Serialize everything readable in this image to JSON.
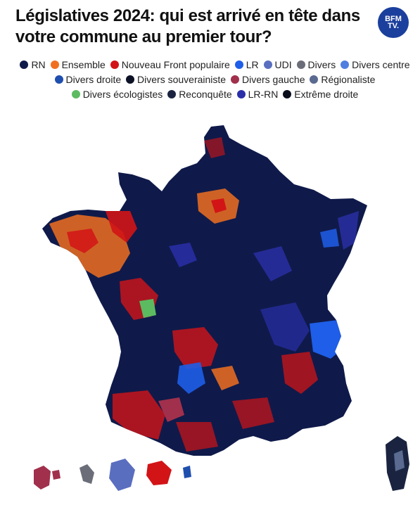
{
  "title": "Législatives 2024: qui est arrivé en tête dans votre commune au premier tour?",
  "logo": {
    "line1": "BFM",
    "line2": "TV."
  },
  "legend": [
    {
      "label": "RN",
      "color": "#0f1a4a"
    },
    {
      "label": "Ensemble",
      "color": "#f07020"
    },
    {
      "label": "Nouveau Front populaire",
      "color": "#d21416"
    },
    {
      "label": "LR",
      "color": "#1e5ee8"
    },
    {
      "label": "UDI",
      "color": "#5a6ec0"
    },
    {
      "label": "Divers",
      "color": "#6b6e78"
    },
    {
      "label": "Divers centre",
      "color": "#4f7fe0"
    },
    {
      "label": "Divers droite",
      "color": "#1f4fae"
    },
    {
      "label": "Divers souverainiste",
      "color": "#0c1126"
    },
    {
      "label": "Divers gauche",
      "color": "#a0304c"
    },
    {
      "label": "Régionaliste",
      "color": "#5a6a90"
    },
    {
      "label": "Divers écologistes",
      "color": "#5cbb60"
    },
    {
      "label": "Reconquête",
      "color": "#1a2440"
    },
    {
      "label": "LR-RN",
      "color": "#2a2fa8"
    },
    {
      "label": "Extrême droite",
      "color": "#0a0d1c"
    }
  ]
}
